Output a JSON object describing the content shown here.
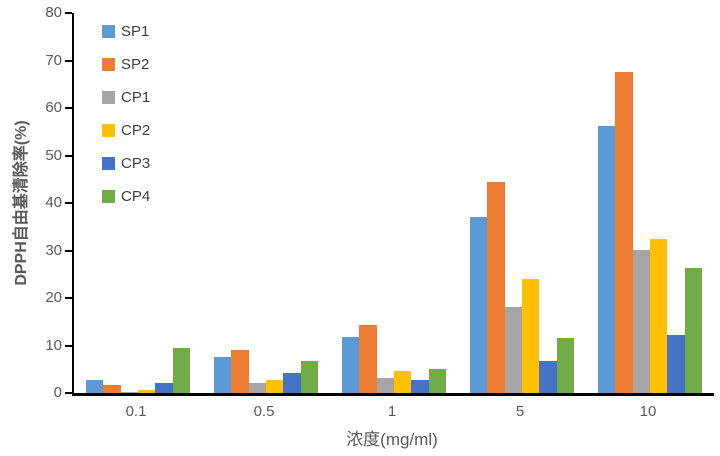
{
  "chart_data": {
    "type": "bar",
    "title": "",
    "xlabel": "浓度(mg/ml)",
    "ylabel": "DPPH自由基清除率(%)",
    "ylim": [
      0,
      80
    ],
    "yticks": [
      0,
      10,
      20,
      30,
      40,
      50,
      60,
      70,
      80
    ],
    "grid": false,
    "legend_position": "top-left-inside",
    "axis_line_color": "#000000",
    "axis_text_color": "#595959",
    "categories": [
      "0.1",
      "0.5",
      "1",
      "5",
      "10"
    ],
    "series": [
      {
        "name": "SP1",
        "color": "#5B9BD5",
        "values": [
          2.8,
          7.5,
          11.8,
          37.0,
          56.2
        ]
      },
      {
        "name": "SP2",
        "color": "#ED7D31",
        "values": [
          1.7,
          9.0,
          14.3,
          44.5,
          67.5
        ]
      },
      {
        "name": "CP1",
        "color": "#A5A5A5",
        "values": [
          0.2,
          2.2,
          3.1,
          18.2,
          30.2
        ]
      },
      {
        "name": "CP2",
        "color": "#FFC000",
        "values": [
          0.6,
          2.8,
          4.7,
          24.1,
          32.5
        ]
      },
      {
        "name": "CP3",
        "color": "#4472C4",
        "values": [
          2.2,
          4.3,
          2.8,
          6.8,
          12.2
        ]
      },
      {
        "name": "CP4",
        "color": "#70AD47",
        "values": [
          9.4,
          6.8,
          5.0,
          11.6,
          26.4
        ]
      }
    ]
  }
}
